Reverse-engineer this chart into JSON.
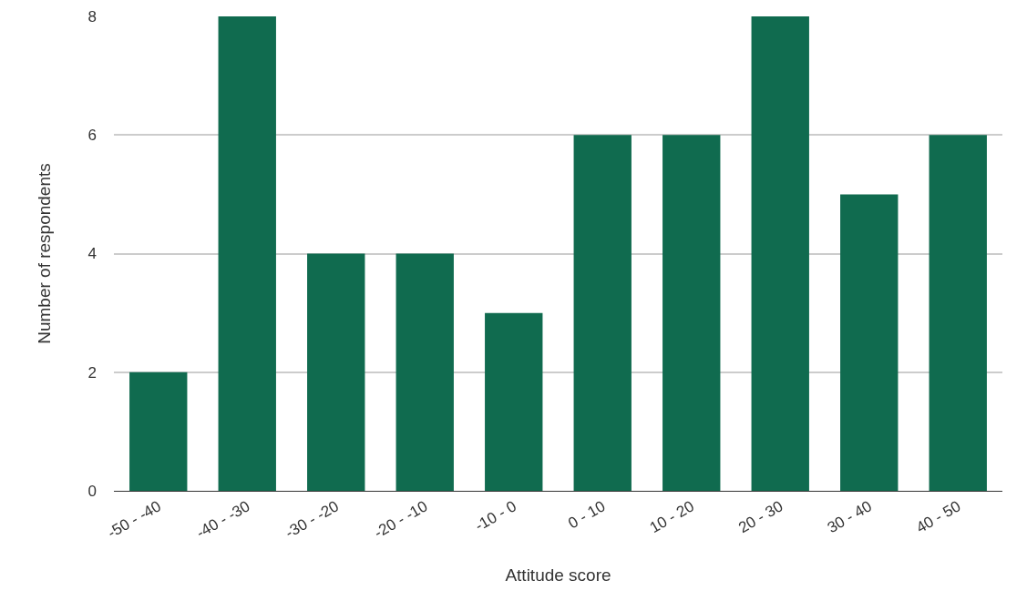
{
  "chart_data": {
    "type": "bar",
    "xlabel": "Attitude score",
    "ylabel": "Number of respondents",
    "categories": [
      "-50 - -40",
      "-40 - -30",
      "-30 - -20",
      "-20 - -10",
      "-10 - 0",
      "0 - 10",
      "10 - 20",
      "20 - 30",
      "30 - 40",
      "40 - 50"
    ],
    "values": [
      2,
      8,
      4,
      4,
      3,
      6,
      6,
      8,
      5,
      6
    ],
    "color": "#106b4f",
    "ylim": [
      0,
      8
    ],
    "yticks": [
      0,
      2,
      4,
      6,
      8
    ],
    "grid": "y"
  }
}
